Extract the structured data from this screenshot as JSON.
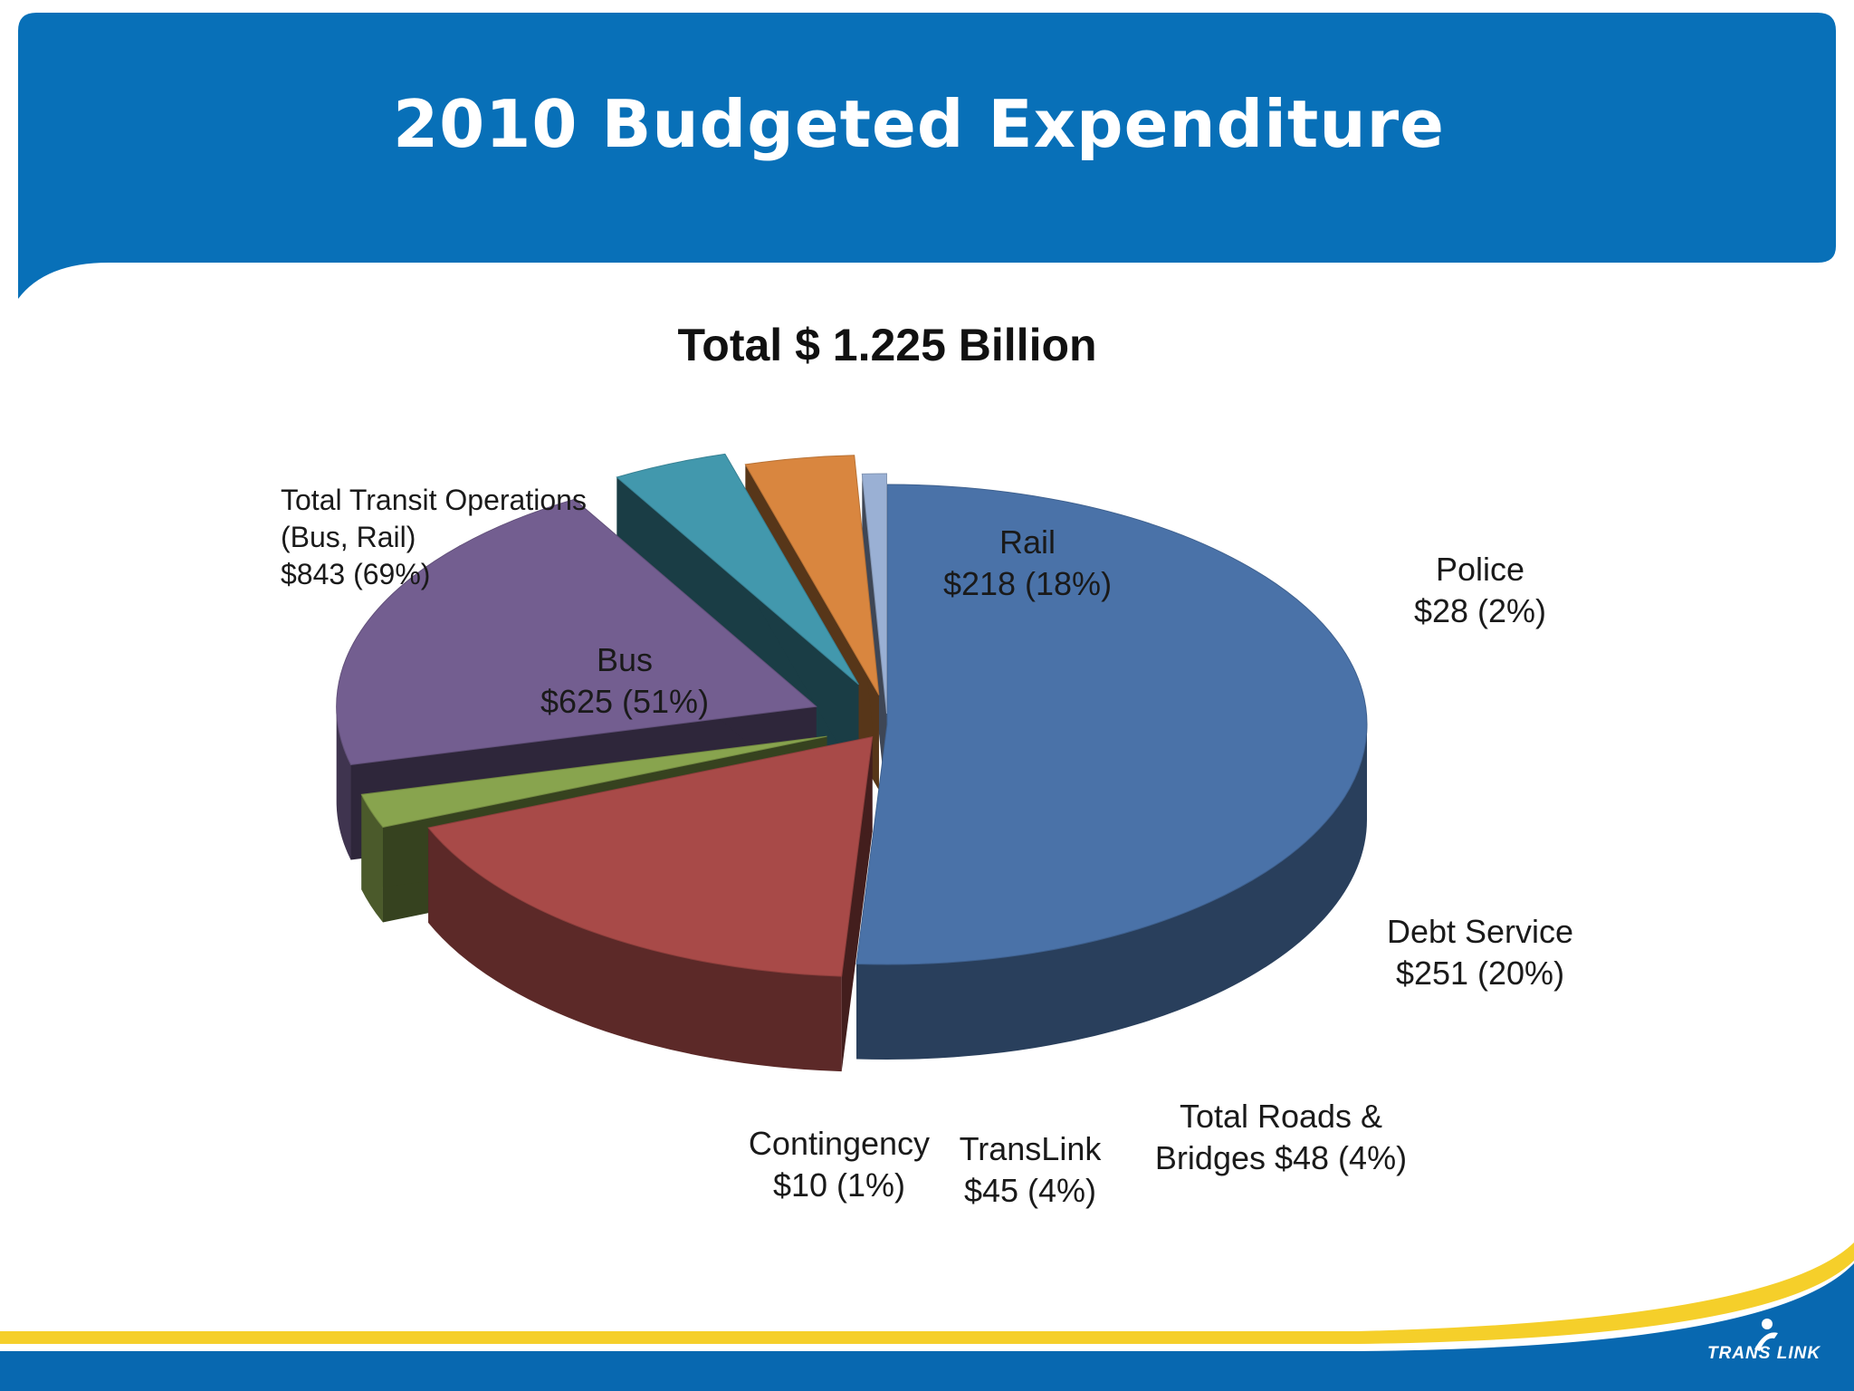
{
  "header": {
    "title": "2010 Budgeted Expenditure"
  },
  "chart_data": {
    "type": "pie",
    "title": "Total $ 1.225 Billion",
    "units": "$ millions",
    "slices": [
      {
        "name": "Bus",
        "value": 625,
        "percent": 51,
        "color": "#4a72a8"
      },
      {
        "name": "Rail",
        "value": 218,
        "percent": 18,
        "color": "#a84a48"
      },
      {
        "name": "Police",
        "value": 28,
        "percent": 2,
        "color": "#88a44e"
      },
      {
        "name": "Debt Service",
        "value": 251,
        "percent": 20,
        "color": "#735e90"
      },
      {
        "name": "Total Roads & Bridges",
        "value": 48,
        "percent": 4,
        "color": "#4298ad"
      },
      {
        "name": "TransLink",
        "value": 45,
        "percent": 4,
        "color": "#d9863f"
      },
      {
        "name": "Contingency",
        "value": 10,
        "percent": 1,
        "color": "#9ab0d4"
      }
    ],
    "group_annotation": {
      "lines": [
        "Total Transit Operations",
        "(Bus, Rail)",
        "$843 (69%)"
      ],
      "value": 843,
      "percent": 69
    },
    "labels": {
      "bus": [
        "Bus",
        "$625  (51%)"
      ],
      "rail": [
        "Rail",
        "$218  (18%)"
      ],
      "police": [
        "Police",
        "$28  (2%)"
      ],
      "debt": [
        "Debt Service",
        "$251  (20%)"
      ],
      "roads": [
        "Total Roads &",
        "Bridges  $48  (4%)"
      ],
      "translink": [
        "TransLink",
        "$45  (4%)"
      ],
      "contingency": [
        "Contingency",
        "$10  (1%)"
      ]
    }
  },
  "logo": {
    "text": "TRANS LINK"
  },
  "colors": {
    "header_blue": "#0870b8",
    "footer_blue": "#0868b0",
    "stripe_yellow": "#f5cf2a"
  }
}
